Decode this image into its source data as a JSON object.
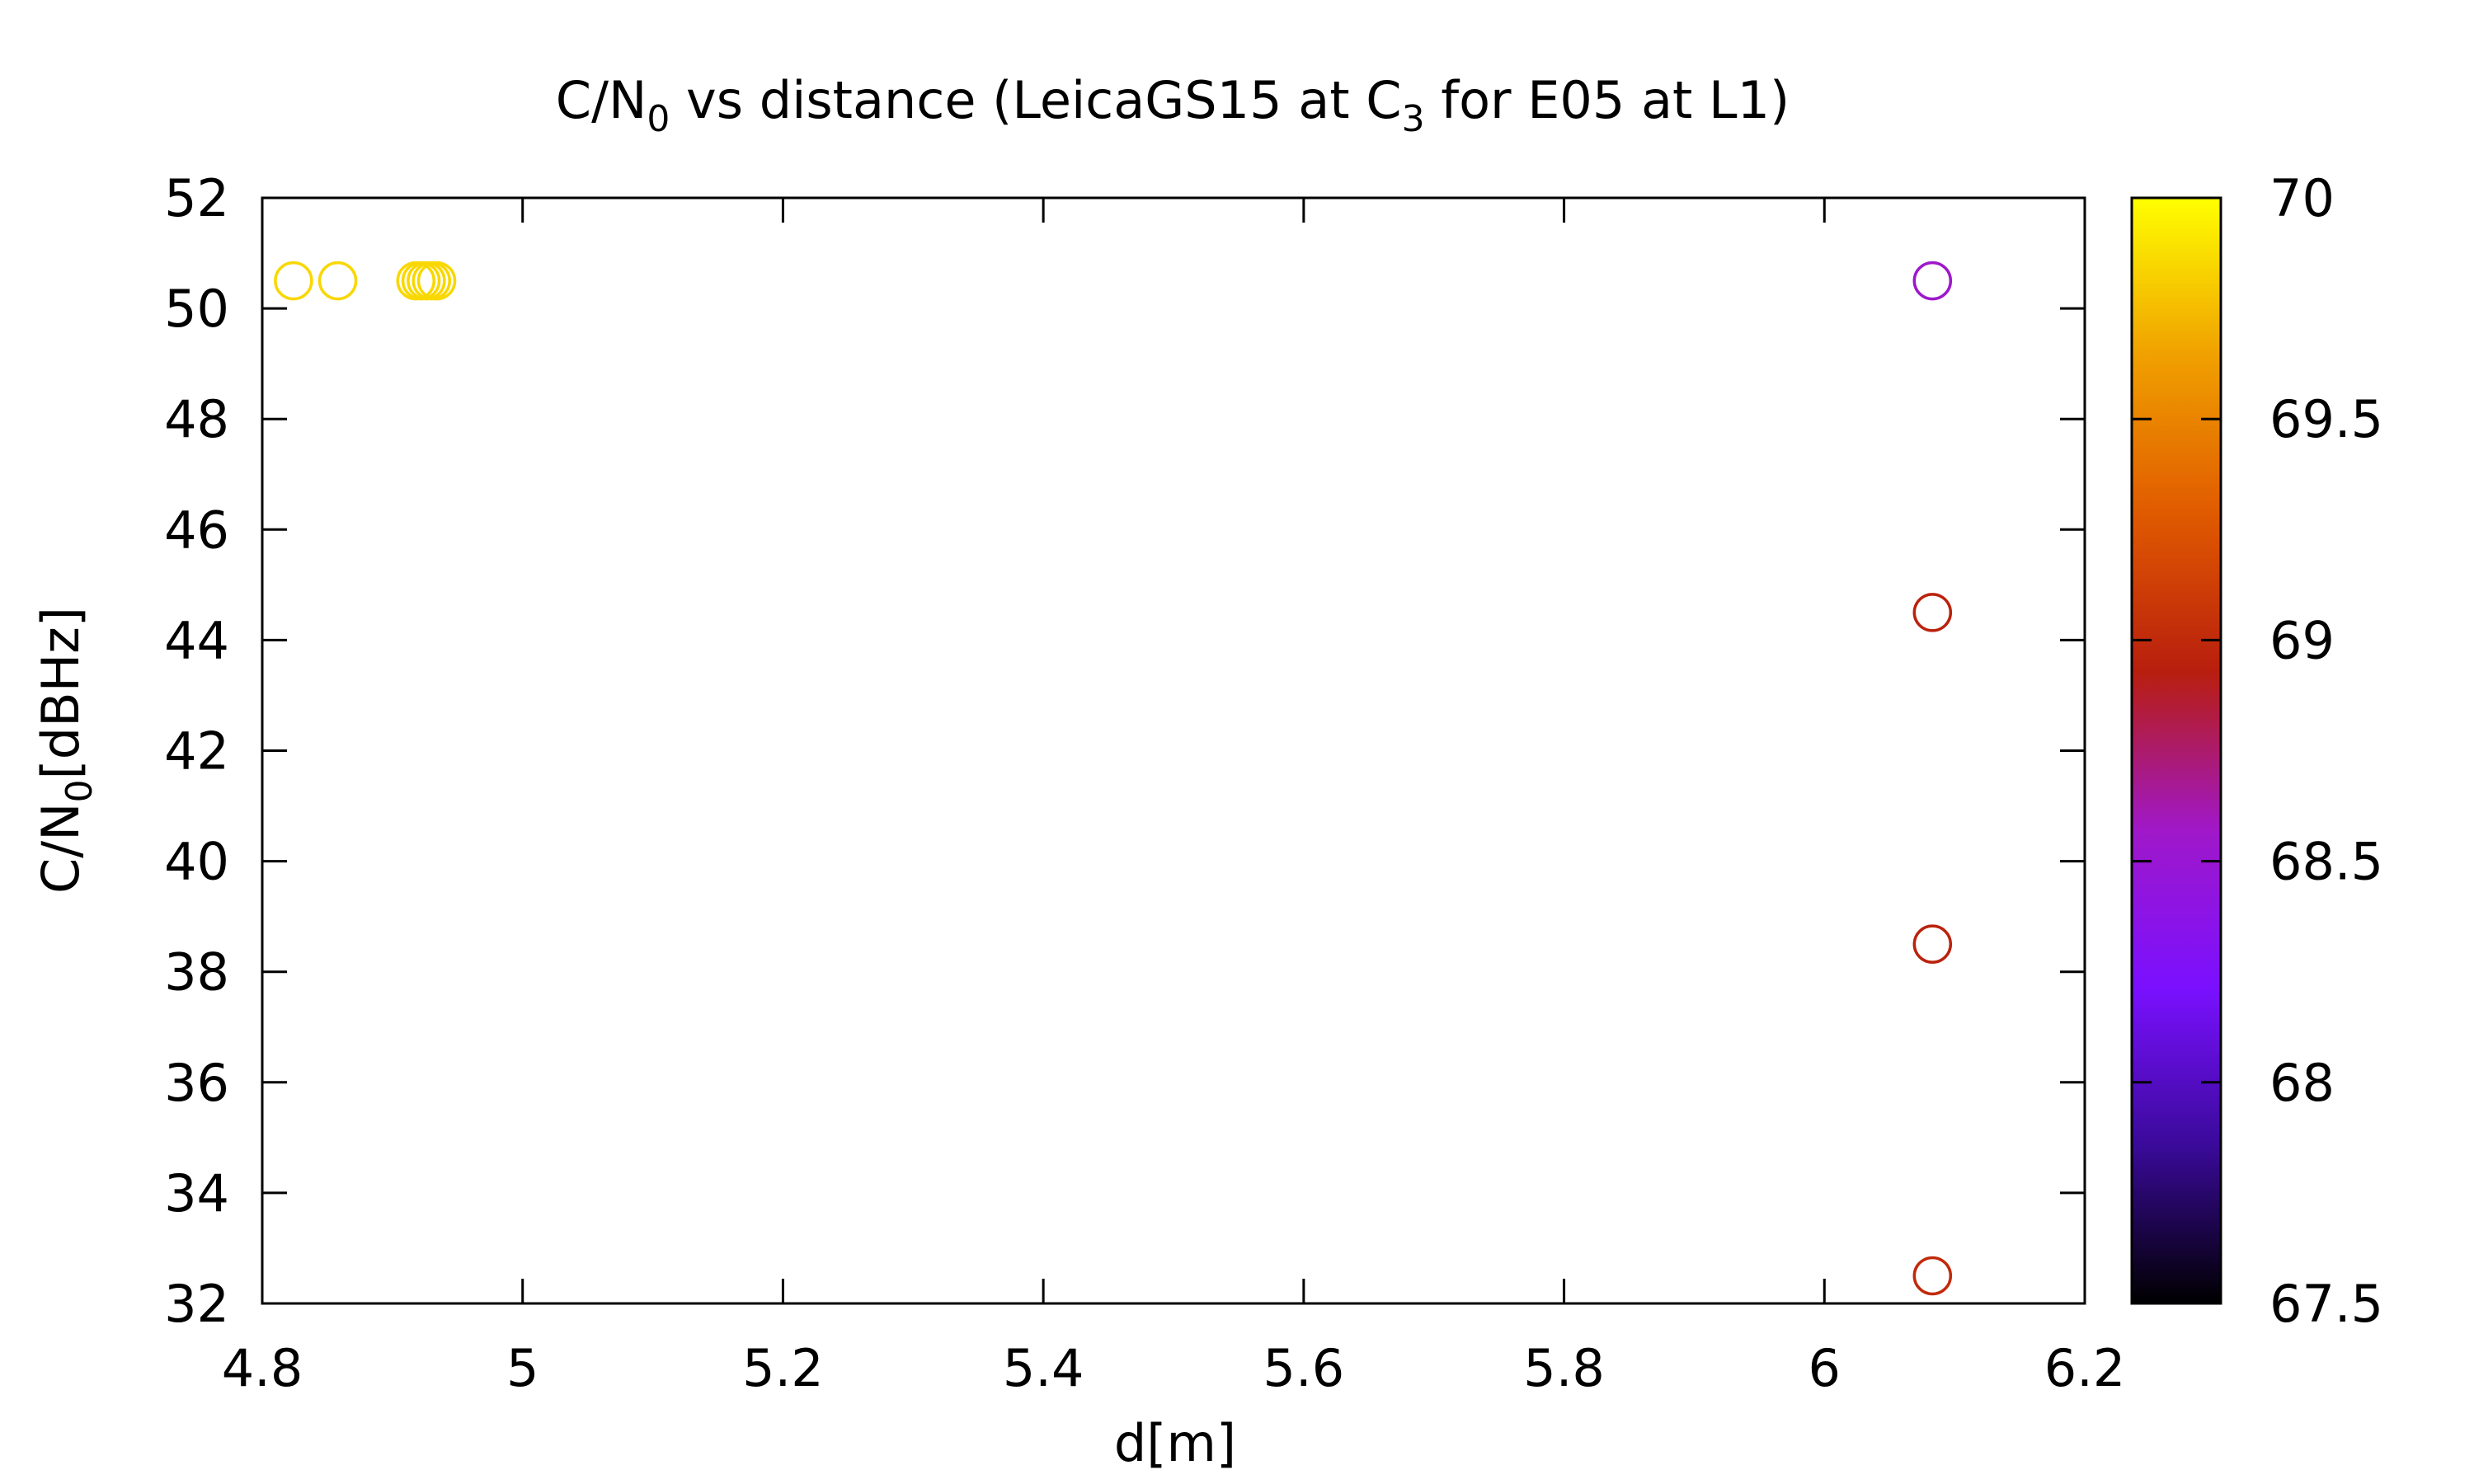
{
  "chart_data": {
    "type": "scatter",
    "title": {
      "prefix": "C/N",
      "prefix_sub": "0",
      "middle": " vs distance (LeicaGS15 at C",
      "middle_sub": "3",
      "suffix": " for E05 at L1)"
    },
    "xlabel": "d[m]",
    "ylabel": {
      "prefix": "C/N",
      "sub": "0",
      "suffix": "[dBHz]"
    },
    "xlim": [
      4.8,
      6.2
    ],
    "ylim": [
      32,
      52
    ],
    "xticks": [
      4.8,
      5.0,
      5.2,
      5.4,
      5.6,
      5.8,
      6.0,
      6.2
    ],
    "xtick_labels": [
      "4.8",
      "5",
      "5.2",
      "5.4",
      "5.6",
      "5.8",
      "6",
      "6.2"
    ],
    "yticks": [
      32,
      34,
      36,
      38,
      40,
      42,
      44,
      46,
      48,
      50,
      52
    ],
    "ytick_labels": [
      "32",
      "34",
      "36",
      "38",
      "40",
      "42",
      "44",
      "46",
      "48",
      "50",
      "52"
    ],
    "marker": "open-circle",
    "grid": false,
    "colorbar": {
      "range": [
        67.5,
        70
      ],
      "ticks": [
        67.5,
        68,
        68.5,
        69,
        69.5,
        70
      ],
      "tick_labels": [
        "67.5",
        "68",
        "68.5",
        "69",
        "69.5",
        "70"
      ],
      "palette": [
        "#000000",
        "#3a0a9a",
        "#7a10ff",
        "#a018c8",
        "#b81e0e",
        "#e05a00",
        "#f0a000",
        "#ffff00"
      ]
    },
    "points": [
      {
        "x": 4.824,
        "y": 50.5,
        "c": 69.85
      },
      {
        "x": 4.858,
        "y": 50.5,
        "c": 69.85
      },
      {
        "x": 4.918,
        "y": 50.5,
        "c": 69.85
      },
      {
        "x": 4.922,
        "y": 50.5,
        "c": 69.85
      },
      {
        "x": 4.926,
        "y": 50.5,
        "c": 69.85
      },
      {
        "x": 4.93,
        "y": 50.5,
        "c": 69.85
      },
      {
        "x": 4.934,
        "y": 50.5,
        "c": 69.85
      },
      {
        "x": 6.083,
        "y": 50.5,
        "c": 68.55
      },
      {
        "x": 6.083,
        "y": 44.5,
        "c": 68.95
      },
      {
        "x": 6.083,
        "y": 38.5,
        "c": 68.95
      },
      {
        "x": 6.083,
        "y": 32.5,
        "c": 69.0
      }
    ]
  }
}
